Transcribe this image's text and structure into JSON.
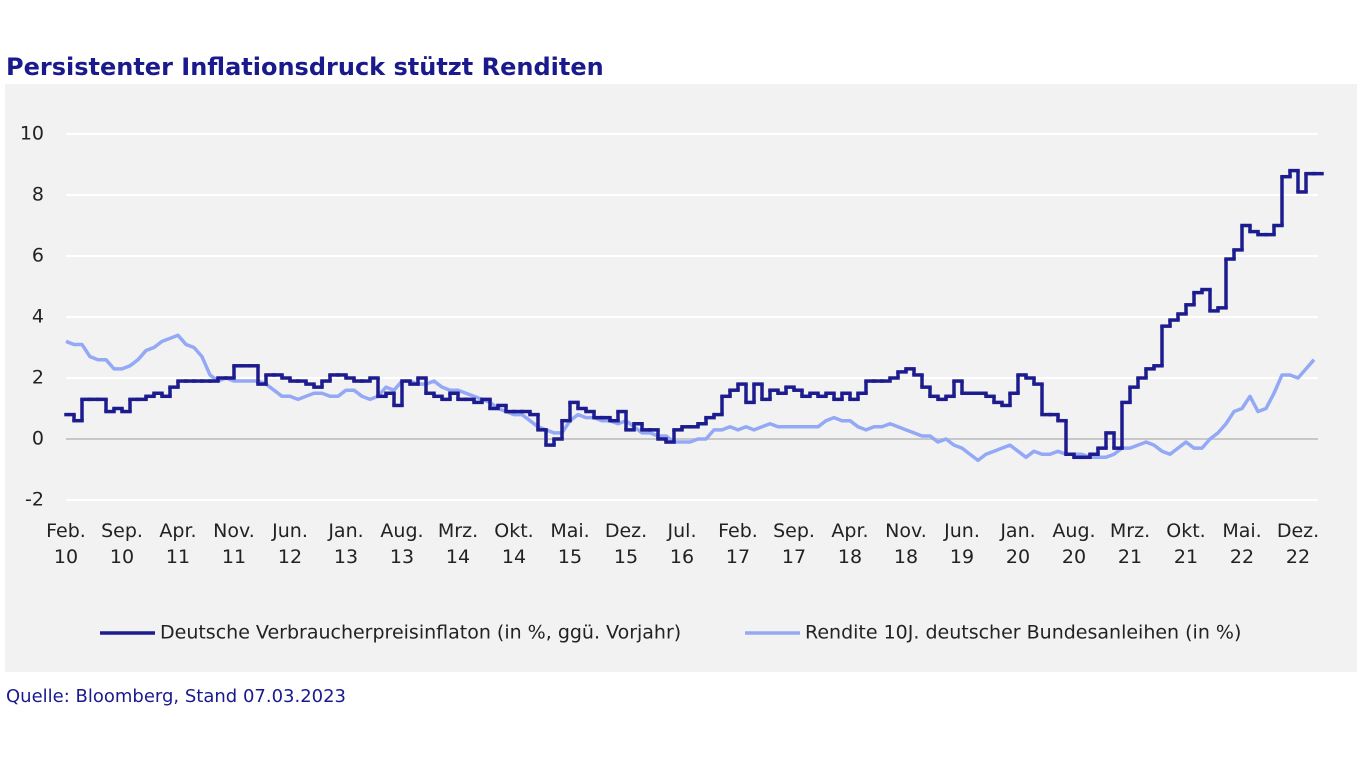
{
  "chart_data": {
    "type": "line",
    "title": "Persistenter Inflationsdruck stützt Renditen",
    "source": "Quelle: Bloomberg, Stand 07.03.2023",
    "x": [
      "2010-02",
      "2010-03",
      "2010-04",
      "2010-05",
      "2010-06",
      "2010-07",
      "2010-08",
      "2010-09",
      "2010-10",
      "2010-11",
      "2010-12",
      "2011-01",
      "2011-02",
      "2011-03",
      "2011-04",
      "2011-05",
      "2011-06",
      "2011-07",
      "2011-08",
      "2011-09",
      "2011-10",
      "2011-11",
      "2011-12",
      "2012-01",
      "2012-02",
      "2012-03",
      "2012-04",
      "2012-05",
      "2012-06",
      "2012-07",
      "2012-08",
      "2012-09",
      "2012-10",
      "2012-11",
      "2012-12",
      "2013-01",
      "2013-02",
      "2013-03",
      "2013-04",
      "2013-05",
      "2013-06",
      "2013-07",
      "2013-08",
      "2013-09",
      "2013-10",
      "2013-11",
      "2013-12",
      "2014-01",
      "2014-02",
      "2014-03",
      "2014-04",
      "2014-05",
      "2014-06",
      "2014-07",
      "2014-08",
      "2014-09",
      "2014-10",
      "2014-11",
      "2014-12",
      "2015-01",
      "2015-02",
      "2015-03",
      "2015-04",
      "2015-05",
      "2015-06",
      "2015-07",
      "2015-08",
      "2015-09",
      "2015-10",
      "2015-11",
      "2015-12",
      "2016-01",
      "2016-02",
      "2016-03",
      "2016-04",
      "2016-05",
      "2016-06",
      "2016-07",
      "2016-08",
      "2016-09",
      "2016-10",
      "2016-11",
      "2016-12",
      "2017-01",
      "2017-02",
      "2017-03",
      "2017-04",
      "2017-05",
      "2017-06",
      "2017-07",
      "2017-08",
      "2017-09",
      "2017-10",
      "2017-11",
      "2017-12",
      "2018-01",
      "2018-02",
      "2018-03",
      "2018-04",
      "2018-05",
      "2018-06",
      "2018-07",
      "2018-08",
      "2018-09",
      "2018-10",
      "2018-11",
      "2018-12",
      "2019-01",
      "2019-02",
      "2019-03",
      "2019-04",
      "2019-05",
      "2019-06",
      "2019-07",
      "2019-08",
      "2019-09",
      "2019-10",
      "2019-11",
      "2019-12",
      "2020-01",
      "2020-02",
      "2020-03",
      "2020-04",
      "2020-05",
      "2020-06",
      "2020-07",
      "2020-08",
      "2020-09",
      "2020-10",
      "2020-11",
      "2020-12",
      "2021-01",
      "2021-02",
      "2021-03",
      "2021-04",
      "2021-05",
      "2021-06",
      "2021-07",
      "2021-08",
      "2021-09",
      "2021-10",
      "2021-11",
      "2021-12",
      "2022-01",
      "2022-02",
      "2022-03",
      "2022-04",
      "2022-05",
      "2022-06",
      "2022-07",
      "2022-08",
      "2022-09",
      "2022-10",
      "2022-11",
      "2022-12",
      "2023-01",
      "2023-02"
    ],
    "series": [
      {
        "name": "Deutsche Verbraucherpreisinflaton (in %, ggü. Vorjahr)",
        "color": "#1c1c8f",
        "step": true,
        "values": [
          0.8,
          0.6,
          1.3,
          1.3,
          1.3,
          0.9,
          1.0,
          0.9,
          1.3,
          1.3,
          1.4,
          1.5,
          1.4,
          1.7,
          1.9,
          1.9,
          1.9,
          1.9,
          1.9,
          2.0,
          2.0,
          2.4,
          2.4,
          2.4,
          1.8,
          2.1,
          2.1,
          2.0,
          1.9,
          1.9,
          1.8,
          1.7,
          1.9,
          2.1,
          2.1,
          2.0,
          1.9,
          1.9,
          2.0,
          1.4,
          1.5,
          1.1,
          1.9,
          1.8,
          2.0,
          1.5,
          1.4,
          1.3,
          1.5,
          1.3,
          1.3,
          1.2,
          1.3,
          1.0,
          1.1,
          0.9,
          0.9,
          0.9,
          0.8,
          0.3,
          -0.2,
          0.0,
          0.6,
          1.2,
          1.0,
          0.9,
          0.7,
          0.7,
          0.6,
          0.9,
          0.3,
          0.5,
          0.3,
          0.3,
          0.0,
          -0.1,
          0.3,
          0.4,
          0.4,
          0.5,
          0.7,
          0.8,
          1.4,
          1.6,
          1.8,
          1.2,
          1.8,
          1.3,
          1.6,
          1.5,
          1.7,
          1.6,
          1.4,
          1.5,
          1.4,
          1.5,
          1.3,
          1.5,
          1.3,
          1.5,
          1.9,
          1.9,
          1.9,
          2.0,
          2.2,
          2.3,
          2.1,
          1.7,
          1.4,
          1.3,
          1.4,
          1.9,
          1.5,
          1.5,
          1.5,
          1.4,
          1.2,
          1.1,
          1.5,
          2.1,
          2.0,
          1.8,
          0.8,
          0.8,
          0.6,
          -0.5,
          -0.6,
          -0.6,
          -0.5,
          -0.3,
          0.2,
          -0.3,
          1.2,
          1.7,
          2.0,
          2.3,
          2.4,
          3.7,
          3.9,
          4.1,
          4.4,
          4.8,
          4.9,
          4.2,
          4.3,
          5.9,
          6.2,
          7.0,
          6.8,
          6.7,
          6.7,
          7.0,
          8.6,
          8.8,
          8.1,
          8.7,
          8.7
        ]
      },
      {
        "name": "Rendite 10J. deutscher Bundesanleihen (in %)",
        "color": "#94a9f5",
        "step": false,
        "values": [
          3.2,
          3.1,
          3.1,
          2.7,
          2.6,
          2.6,
          2.3,
          2.3,
          2.4,
          2.6,
          2.9,
          3.0,
          3.2,
          3.3,
          3.4,
          3.1,
          3.0,
          2.7,
          2.1,
          1.9,
          2.0,
          1.9,
          1.9,
          1.9,
          1.9,
          1.8,
          1.6,
          1.4,
          1.4,
          1.3,
          1.4,
          1.5,
          1.5,
          1.4,
          1.4,
          1.6,
          1.6,
          1.4,
          1.3,
          1.4,
          1.7,
          1.6,
          1.9,
          1.9,
          1.8,
          1.8,
          1.9,
          1.7,
          1.6,
          1.6,
          1.5,
          1.4,
          1.3,
          1.2,
          1.0,
          0.9,
          0.8,
          0.8,
          0.6,
          0.4,
          0.3,
          0.2,
          0.2,
          0.6,
          0.8,
          0.7,
          0.7,
          0.6,
          0.6,
          0.5,
          0.6,
          0.4,
          0.2,
          0.2,
          0.1,
          0.1,
          -0.1,
          -0.1,
          -0.1,
          0.0,
          0.0,
          0.3,
          0.3,
          0.4,
          0.3,
          0.4,
          0.3,
          0.4,
          0.5,
          0.4,
          0.4,
          0.4,
          0.4,
          0.4,
          0.4,
          0.6,
          0.7,
          0.6,
          0.6,
          0.4,
          0.3,
          0.4,
          0.4,
          0.5,
          0.4,
          0.3,
          0.2,
          0.1,
          0.1,
          -0.1,
          0.0,
          -0.2,
          -0.3,
          -0.5,
          -0.7,
          -0.5,
          -0.4,
          -0.3,
          -0.2,
          -0.4,
          -0.6,
          -0.4,
          -0.5,
          -0.5,
          -0.4,
          -0.5,
          -0.5,
          -0.5,
          -0.6,
          -0.6,
          -0.6,
          -0.5,
          -0.3,
          -0.3,
          -0.2,
          -0.1,
          -0.2,
          -0.4,
          -0.5,
          -0.3,
          -0.1,
          -0.3,
          -0.3,
          0.0,
          0.2,
          0.5,
          0.9,
          1.0,
          1.4,
          0.9,
          1.0,
          1.5,
          2.1,
          2.1,
          2.0,
          2.3,
          2.6
        ]
      }
    ],
    "xlim": [
      "2010-02",
      "2023-02"
    ],
    "xticks": [
      {
        "value": "2010-02",
        "label": "Feb. 10"
      },
      {
        "value": "2010-09",
        "label": "Sep. 10"
      },
      {
        "value": "2011-04",
        "label": "Apr. 11"
      },
      {
        "value": "2011-11",
        "label": "Nov. 11"
      },
      {
        "value": "2012-06",
        "label": "Jun. 12"
      },
      {
        "value": "2013-01",
        "label": "Jan. 13"
      },
      {
        "value": "2013-08",
        "label": "Aug. 13"
      },
      {
        "value": "2014-03",
        "label": "Mrz. 14"
      },
      {
        "value": "2014-10",
        "label": "Okt. 14"
      },
      {
        "value": "2015-05",
        "label": "Mai. 15"
      },
      {
        "value": "2015-12",
        "label": "Dez. 15"
      },
      {
        "value": "2016-07",
        "label": "Jul. 16"
      },
      {
        "value": "2017-02",
        "label": "Feb. 17"
      },
      {
        "value": "2017-09",
        "label": "Sep. 17"
      },
      {
        "value": "2018-04",
        "label": "Apr. 18"
      },
      {
        "value": "2018-11",
        "label": "Nov. 18"
      },
      {
        "value": "2019-06",
        "label": "Jun. 19"
      },
      {
        "value": "2020-01",
        "label": "Jan. 20"
      },
      {
        "value": "2020-08",
        "label": "Aug. 20"
      },
      {
        "value": "2021-03",
        "label": "Mrz. 21"
      },
      {
        "value": "2021-10",
        "label": "Okt. 21"
      },
      {
        "value": "2022-05",
        "label": "Mai. 22"
      },
      {
        "value": "2022-12",
        "label": "Dez. 22"
      }
    ],
    "ylim": [
      -2,
      10
    ],
    "yticks": [
      -2,
      0,
      2,
      4,
      6,
      8,
      10
    ],
    "grid": true,
    "legend": "bottom"
  }
}
